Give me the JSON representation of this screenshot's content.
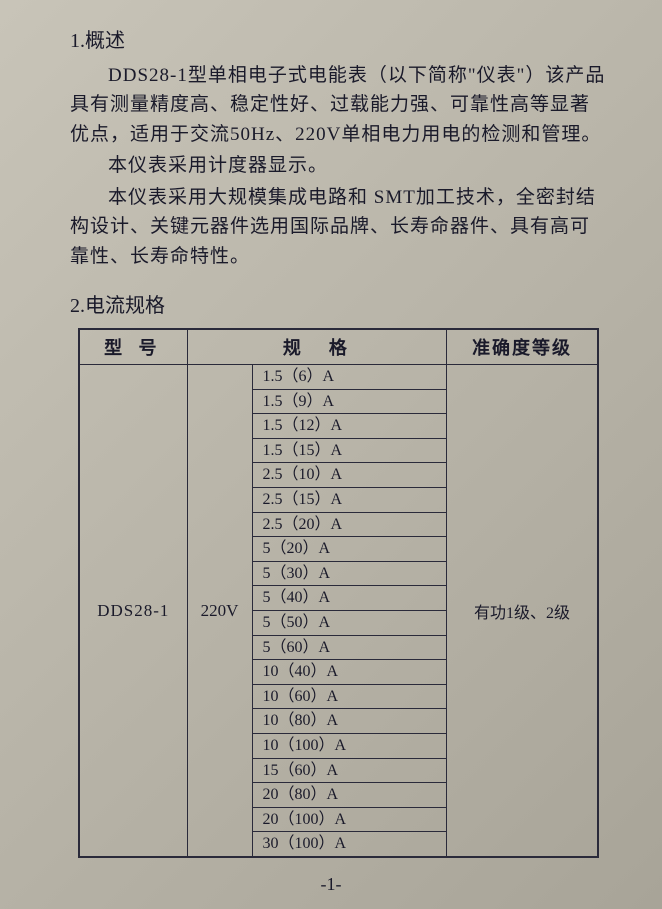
{
  "section1": {
    "heading": "1.概述",
    "para1": "DDS28-1型单相电子式电能表（以下简称\"仪表\"）该产品具有测量精度高、稳定性好、过载能力强、可靠性高等显著优点，适用于交流50Hz、220V单相电力用电的检测和管理。",
    "para2": "本仪表采用计度器显示。",
    "para3": "本仪表采用大规模集成电路和 SMT加工技术，全密封结构设计、关键元器件选用国际品牌、长寿命器件、具有高可靠性、长寿命特性。"
  },
  "section2": {
    "heading": "2.电流规格",
    "table": {
      "headers": {
        "model": "型 号",
        "spec": "规格",
        "accuracy": "准确度等级"
      },
      "model": "DDS28-1",
      "voltage": "220V",
      "accuracy": "有功1级、2级",
      "currents": [
        "1.5（6）A",
        "1.5（9）A",
        "1.5（12）A",
        "1.5（15）A",
        "2.5（10）A",
        "2.5（15）A",
        "2.5（20）A",
        "5（20）A",
        "5（30）A",
        "5（40）A",
        "5（50）A",
        "5（60）A",
        "10（40）A",
        "10（60）A",
        "10（80）A",
        "10（100）A",
        "15（60）A",
        "20（80）A",
        "20（100）A",
        "30（100）A"
      ]
    }
  },
  "pageNumber": "-1-",
  "colors": {
    "text": "#1a1a2a",
    "border": "#2a2a3a",
    "background": "#b8b4a8"
  }
}
